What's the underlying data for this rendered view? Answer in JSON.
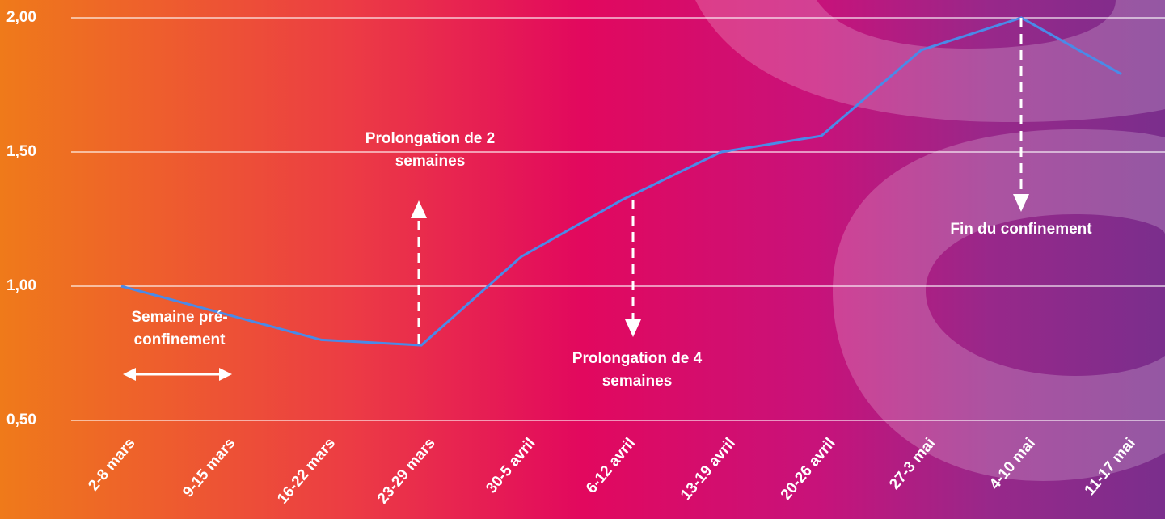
{
  "chart_data": {
    "type": "line",
    "categories": [
      "2-8 mars",
      "9-15 mars",
      "16-22 mars",
      "23-29 mars",
      "30-5 avril",
      "6-12 avril",
      "13-19 avril",
      "20-26 avril",
      "27-3 mai",
      "4-10 mai",
      "11-17 mai"
    ],
    "series": [
      {
        "color": "#4a8ae8",
        "values": [
          1.0,
          0.9,
          0.8,
          0.78,
          1.11,
          1.32,
          1.5,
          1.56,
          1.88,
          2.0,
          1.79
        ]
      }
    ],
    "ylim": [
      0.5,
      2.0
    ],
    "yticks": [
      {
        "value": 0.5,
        "label": "0,50"
      },
      {
        "value": 1.0,
        "label": "1,00"
      },
      {
        "value": 1.5,
        "label": "1,50"
      },
      {
        "value": 2.0,
        "label": "2,00"
      }
    ],
    "grid": true,
    "annotations": [
      "Prolongation de 2 semaines",
      "Semaine pré-confinement",
      "Prolongation de 4 semaines",
      "Fin du confinement"
    ]
  }
}
